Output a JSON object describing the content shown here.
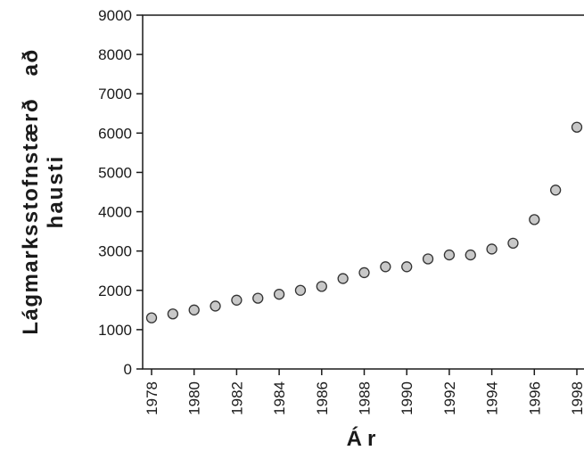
{
  "chart_data": {
    "type": "scatter",
    "xlabel": "Ár",
    "ylabel_line1": "Lágmarksstofnstærð   að",
    "ylabel_line2": "hausti",
    "ylim": [
      0,
      9000
    ],
    "xlim": [
      1978,
      1998
    ],
    "y_ticks": [
      0,
      1000,
      2000,
      3000,
      4000,
      5000,
      6000,
      7000,
      8000,
      9000
    ],
    "x_ticks": [
      1978,
      1980,
      1982,
      1984,
      1986,
      1988,
      1990,
      1992,
      1994,
      1996,
      1998
    ],
    "grid": false,
    "marker_fill": "#c8c8c8",
    "marker_stroke": "#333333",
    "points": [
      {
        "x": 1978,
        "y": 1300
      },
      {
        "x": 1979,
        "y": 1400
      },
      {
        "x": 1980,
        "y": 1500
      },
      {
        "x": 1981,
        "y": 1600
      },
      {
        "x": 1982,
        "y": 1750
      },
      {
        "x": 1983,
        "y": 1800
      },
      {
        "x": 1984,
        "y": 1900
      },
      {
        "x": 1985,
        "y": 2000
      },
      {
        "x": 1986,
        "y": 2100
      },
      {
        "x": 1987,
        "y": 2300
      },
      {
        "x": 1988,
        "y": 2450
      },
      {
        "x": 1989,
        "y": 2600
      },
      {
        "x": 1990,
        "y": 2600
      },
      {
        "x": 1991,
        "y": 2800
      },
      {
        "x": 1992,
        "y": 2900
      },
      {
        "x": 1993,
        "y": 2900
      },
      {
        "x": 1994,
        "y": 3050
      },
      {
        "x": 1995,
        "y": 3200
      },
      {
        "x": 1996,
        "y": 3800
      },
      {
        "x": 1997,
        "y": 4550
      },
      {
        "x": 1998,
        "y": 6150
      }
    ]
  }
}
